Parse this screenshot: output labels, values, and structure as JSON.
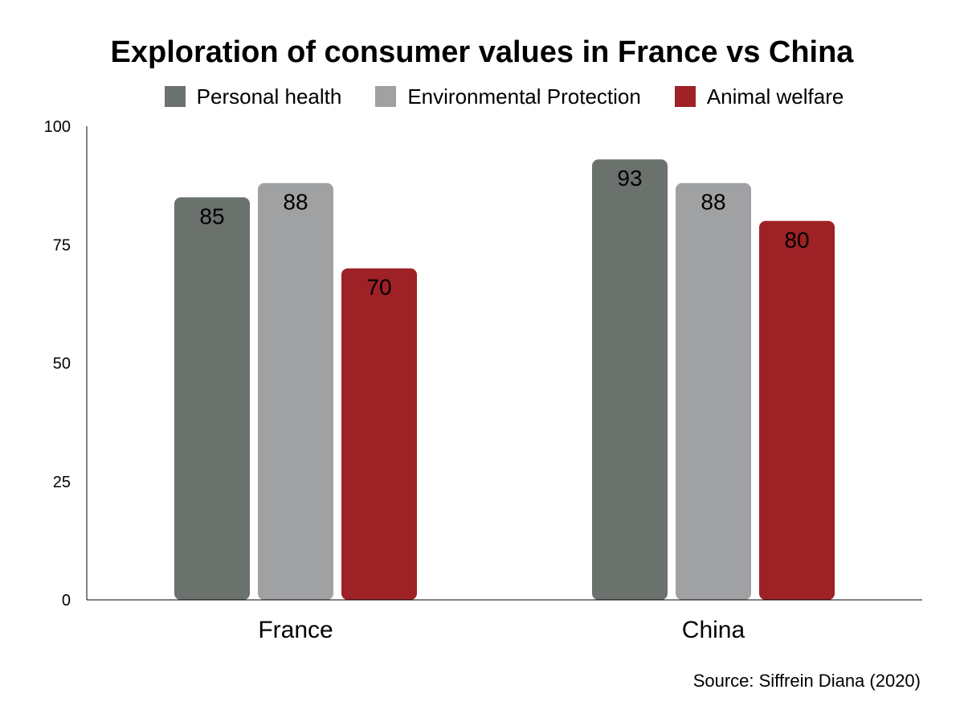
{
  "chart_data": {
    "type": "bar",
    "title": "Exploration of consumer values in France vs China",
    "categories": [
      "France",
      "China"
    ],
    "series": [
      {
        "name": "Personal health",
        "values": [
          85,
          93
        ],
        "color": "#6b716c"
      },
      {
        "name": "Environmental Protection",
        "values": [
          88,
          88
        ],
        "color": "#a0a1a3"
      },
      {
        "name": "Animal welfare",
        "values": [
          70,
          80
        ],
        "color": "#9e2126"
      }
    ],
    "ylim": [
      0,
      100
    ],
    "yticks": [
      0,
      25,
      50,
      75,
      100
    ],
    "xlabel": "",
    "ylabel": "",
    "grid": false,
    "legend_position": "top",
    "data_labels": true,
    "source": "Source: Siffrein Diana (2020)"
  }
}
